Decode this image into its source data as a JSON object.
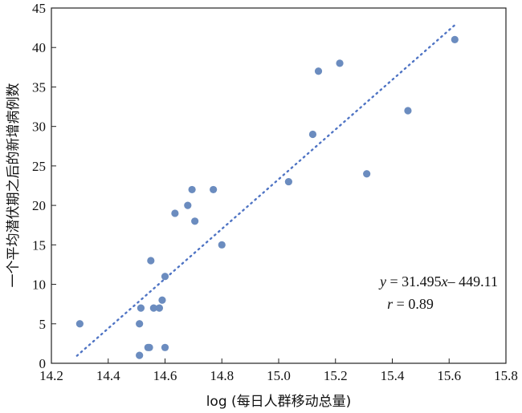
{
  "chart_data": {
    "type": "scatter",
    "title": "",
    "xlabel": "log (每日人群移动总量)",
    "ylabel": "一个平均潜伏期之后的新增病例数",
    "xlim": [
      14.2,
      15.8
    ],
    "ylim": [
      0,
      45
    ],
    "xticks": [
      14.2,
      14.4,
      14.6,
      14.8,
      15.0,
      15.2,
      15.4,
      15.6,
      15.8
    ],
    "xtick_labels": [
      "14.2",
      "14.4",
      "14.6",
      "14.8",
      "15.0",
      "15.2",
      "15.4",
      "15.6",
      "15.8"
    ],
    "yticks": [
      0,
      5,
      10,
      15,
      20,
      25,
      30,
      35,
      40,
      45
    ],
    "ytick_labels": [
      "0",
      "5",
      "10",
      "15",
      "20",
      "25",
      "30",
      "35",
      "40",
      "45"
    ],
    "grid": false,
    "point_color": "#6b8cbf",
    "fit_line_color": "#4f74c4",
    "points": [
      {
        "x": 14.3,
        "y": 5
      },
      {
        "x": 14.51,
        "y": 1
      },
      {
        "x": 14.51,
        "y": 5
      },
      {
        "x": 14.515,
        "y": 7
      },
      {
        "x": 14.54,
        "y": 2
      },
      {
        "x": 14.545,
        "y": 2
      },
      {
        "x": 14.55,
        "y": 13
      },
      {
        "x": 14.56,
        "y": 7
      },
      {
        "x": 14.58,
        "y": 7
      },
      {
        "x": 14.59,
        "y": 8
      },
      {
        "x": 14.6,
        "y": 2
      },
      {
        "x": 14.6,
        "y": 11
      },
      {
        "x": 14.635,
        "y": 19
      },
      {
        "x": 14.68,
        "y": 20
      },
      {
        "x": 14.695,
        "y": 22
      },
      {
        "x": 14.705,
        "y": 18
      },
      {
        "x": 14.77,
        "y": 22
      },
      {
        "x": 14.8,
        "y": 15
      },
      {
        "x": 15.035,
        "y": 23
      },
      {
        "x": 15.12,
        "y": 29
      },
      {
        "x": 15.14,
        "y": 37
      },
      {
        "x": 15.215,
        "y": 38
      },
      {
        "x": 15.31,
        "y": 24
      },
      {
        "x": 15.455,
        "y": 32
      },
      {
        "x": 15.62,
        "y": 41
      }
    ],
    "fit_line": {
      "x": [
        14.29,
        15.62
      ],
      "slope": 31.495,
      "intercept": -449.11
    },
    "annotations": {
      "equation": {
        "y_var": "y",
        "mid": " = 31.495",
        "x_var": "x",
        "end": "– 449.11"
      },
      "correlation": {
        "var": "r",
        "rest": " = 0.89"
      }
    }
  }
}
